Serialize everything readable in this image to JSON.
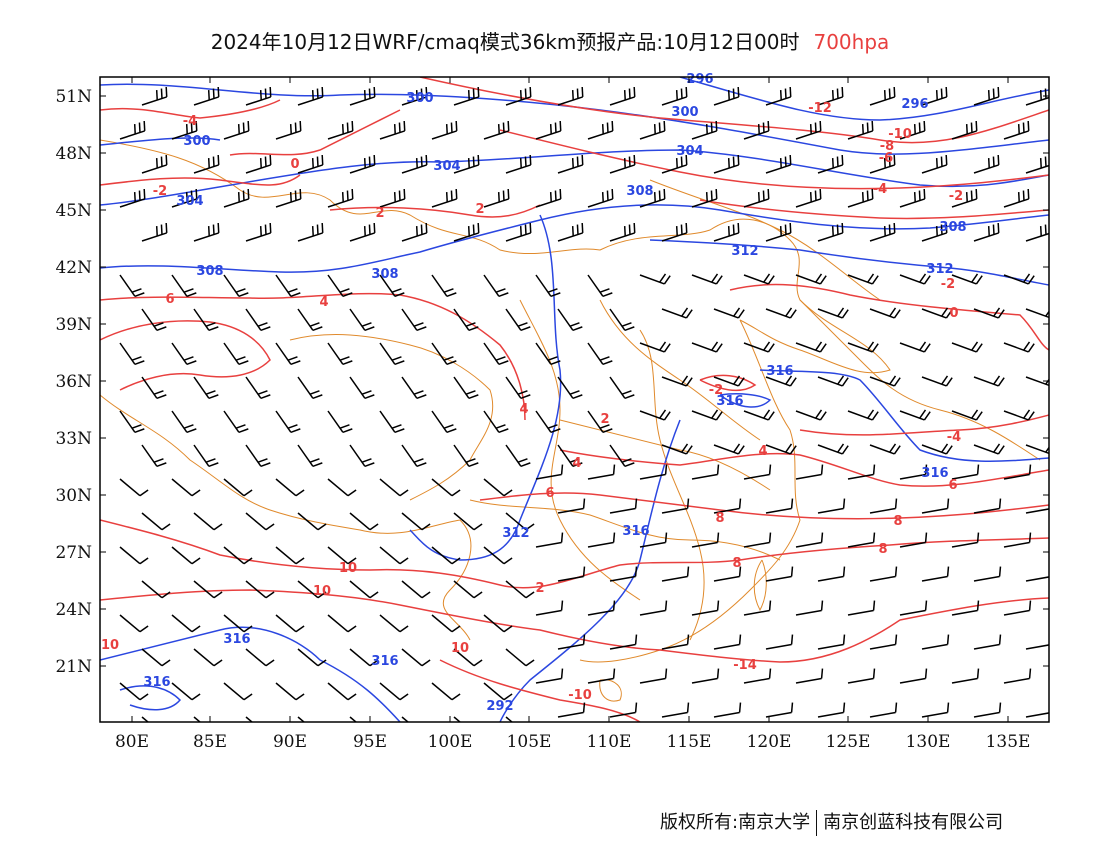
{
  "title": {
    "main": "2024年10月12日WRF/cmaq模式36km预报产品:10月12日00时",
    "level": "700hpa"
  },
  "axes": {
    "lon_labels": [
      "80E",
      "85E",
      "90E",
      "95E",
      "100E",
      "105E",
      "110E",
      "115E",
      "120E",
      "125E",
      "130E",
      "135E"
    ],
    "lat_labels": [
      "51N",
      "48N",
      "45N",
      "42N",
      "39N",
      "36N",
      "33N",
      "30N",
      "27N",
      "24N",
      "21N"
    ]
  },
  "colors": {
    "geopotential": "#2b47e0",
    "temperature": "#e8403f",
    "borders": "#e08a2c",
    "wind": "#000000"
  },
  "geopotential_labels": [
    "296",
    "300",
    "300",
    "300",
    "304",
    "304",
    "304",
    "308",
    "308",
    "308",
    "308",
    "312",
    "312",
    "312",
    "316",
    "316",
    "316",
    "316",
    "316",
    "316",
    "316",
    "292",
    "296"
  ],
  "temperature_labels": [
    "-4",
    "-2",
    "0",
    "2",
    "2",
    "4",
    "6",
    "4",
    "2",
    "4",
    "4",
    "6",
    "8",
    "8",
    "10",
    "10",
    "10",
    "10",
    "-10",
    "-14",
    "-12",
    "-10",
    "-8",
    "-6",
    "-4",
    "-2",
    "0",
    "-2",
    "-4",
    "6",
    "8",
    "8",
    "-2",
    "2"
  ],
  "footer": {
    "left": "版权所有:南京大学",
    "right": "南京创蓝科技有限公司"
  }
}
